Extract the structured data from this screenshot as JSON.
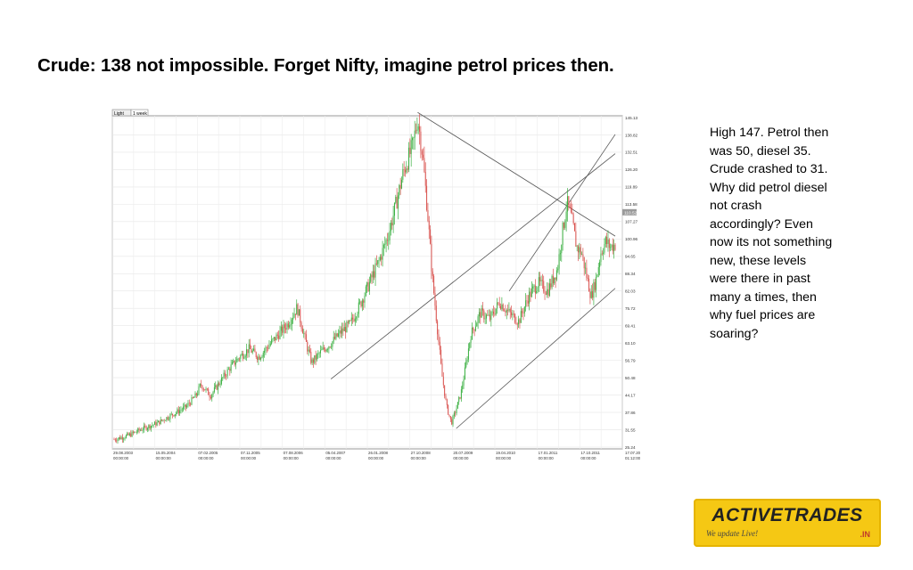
{
  "slide": {
    "title": "Crude: 138 not impossible. Forget Nifty, imagine petrol prices then.",
    "commentary": "High 147. Petrol then was 50, diesel 35. Crude crashed to 31. Why did petrol diesel not crash accordingly? Even now its not something new, these levels were there in past many a times, then why fuel prices are soaring?"
  },
  "logo": {
    "name": "ACTIVETRADES",
    "tagline": "We update Live!",
    "suffix": ".IN"
  },
  "chart_data": {
    "type": "candlestick",
    "toolbar": {
      "style_label": "Light",
      "interval_label": "1 week"
    },
    "y_axis": {
      "ticks": [
        "145.13",
        "138.82",
        "132.51",
        "126.20",
        "119.89",
        "113.58",
        "107.27",
        "100.96",
        "94.65",
        "88.34",
        "82.03",
        "75.72",
        "69.41",
        "63.10",
        "56.79",
        "50.48",
        "44.17",
        "37.86",
        "31.55",
        "25.24"
      ],
      "ylim": [
        25.24,
        145.13
      ],
      "current_value": "110.52"
    },
    "x_axis": {
      "ticks": [
        {
          "date": "29.08.2003",
          "time": "00:00:00"
        },
        {
          "date": "15.05.2004",
          "time": "00:00:00"
        },
        {
          "date": "07.02.2005",
          "time": "00:00:00"
        },
        {
          "date": "07.11.2005",
          "time": "00:00:00"
        },
        {
          "date": "07.08.2006",
          "time": "00:00:00"
        },
        {
          "date": "05.04.2007",
          "time": "00:00:00"
        },
        {
          "date": "26.01.2008",
          "time": "00:00:00"
        },
        {
          "date": "27.10.2008",
          "time": "00:00:00"
        },
        {
          "date": "20.07.2009",
          "time": "00:00:00"
        },
        {
          "date": "19.04.2010",
          "time": "00:00:00"
        },
        {
          "date": "17.01.2011",
          "time": "00:00:00"
        },
        {
          "date": "17.10.2011",
          "time": "00:00:00"
        }
      ],
      "last": {
        "date": "17.07.20",
        "time": "01:12:00"
      }
    },
    "series_anchors": [
      [
        0,
        28
      ],
      [
        3,
        29.5
      ],
      [
        6,
        32
      ],
      [
        9,
        34
      ],
      [
        12,
        37
      ],
      [
        15,
        40
      ],
      [
        17,
        44
      ],
      [
        18,
        48
      ],
      [
        20,
        44
      ],
      [
        22,
        49
      ],
      [
        24,
        54
      ],
      [
        26,
        58
      ],
      [
        28,
        61
      ],
      [
        30,
        58
      ],
      [
        32,
        62
      ],
      [
        34,
        66
      ],
      [
        36,
        70
      ],
      [
        38,
        76
      ],
      [
        40,
        62
      ],
      [
        41,
        56
      ],
      [
        43,
        60
      ],
      [
        45,
        63
      ],
      [
        47,
        67
      ],
      [
        49,
        70
      ],
      [
        51,
        77
      ],
      [
        53,
        85
      ],
      [
        55,
        93
      ],
      [
        57,
        103
      ],
      [
        58,
        110
      ],
      [
        60,
        125
      ],
      [
        62,
        135
      ],
      [
        63,
        145
      ],
      [
        64,
        132
      ],
      [
        65,
        112
      ],
      [
        66,
        88
      ],
      [
        67,
        70
      ],
      [
        68,
        52
      ],
      [
        69,
        40
      ],
      [
        70,
        34
      ],
      [
        71,
        39
      ],
      [
        72,
        45
      ],
      [
        73,
        55
      ],
      [
        74,
        66
      ],
      [
        75,
        70
      ],
      [
        76,
        74
      ],
      [
        78,
        72
      ],
      [
        80,
        78
      ],
      [
        82,
        74
      ],
      [
        84,
        71
      ],
      [
        86,
        80
      ],
      [
        88,
        85
      ],
      [
        90,
        82
      ],
      [
        92,
        90
      ],
      [
        93,
        103
      ],
      [
        94,
        114
      ],
      [
        95,
        108
      ],
      [
        96,
        98
      ],
      [
        97,
        96
      ],
      [
        98,
        88
      ],
      [
        99,
        80
      ],
      [
        100,
        86
      ],
      [
        101,
        96
      ],
      [
        102,
        100
      ],
      [
        103,
        98
      ],
      [
        104,
        99
      ]
    ],
    "trendlines": [
      {
        "from": [
          63,
          147
        ],
        "to": [
          104,
          102
        ]
      },
      {
        "from": [
          45,
          50
        ],
        "to": [
          104,
          132
        ]
      },
      {
        "from": [
          82,
          82
        ],
        "to": [
          104,
          139
        ]
      },
      {
        "from": [
          71,
          32
        ],
        "to": [
          104,
          83
        ]
      }
    ],
    "grid": true,
    "candle_colors": {
      "up": "#3cb043",
      "down": "#d9534f"
    },
    "line_color": "#555555"
  }
}
